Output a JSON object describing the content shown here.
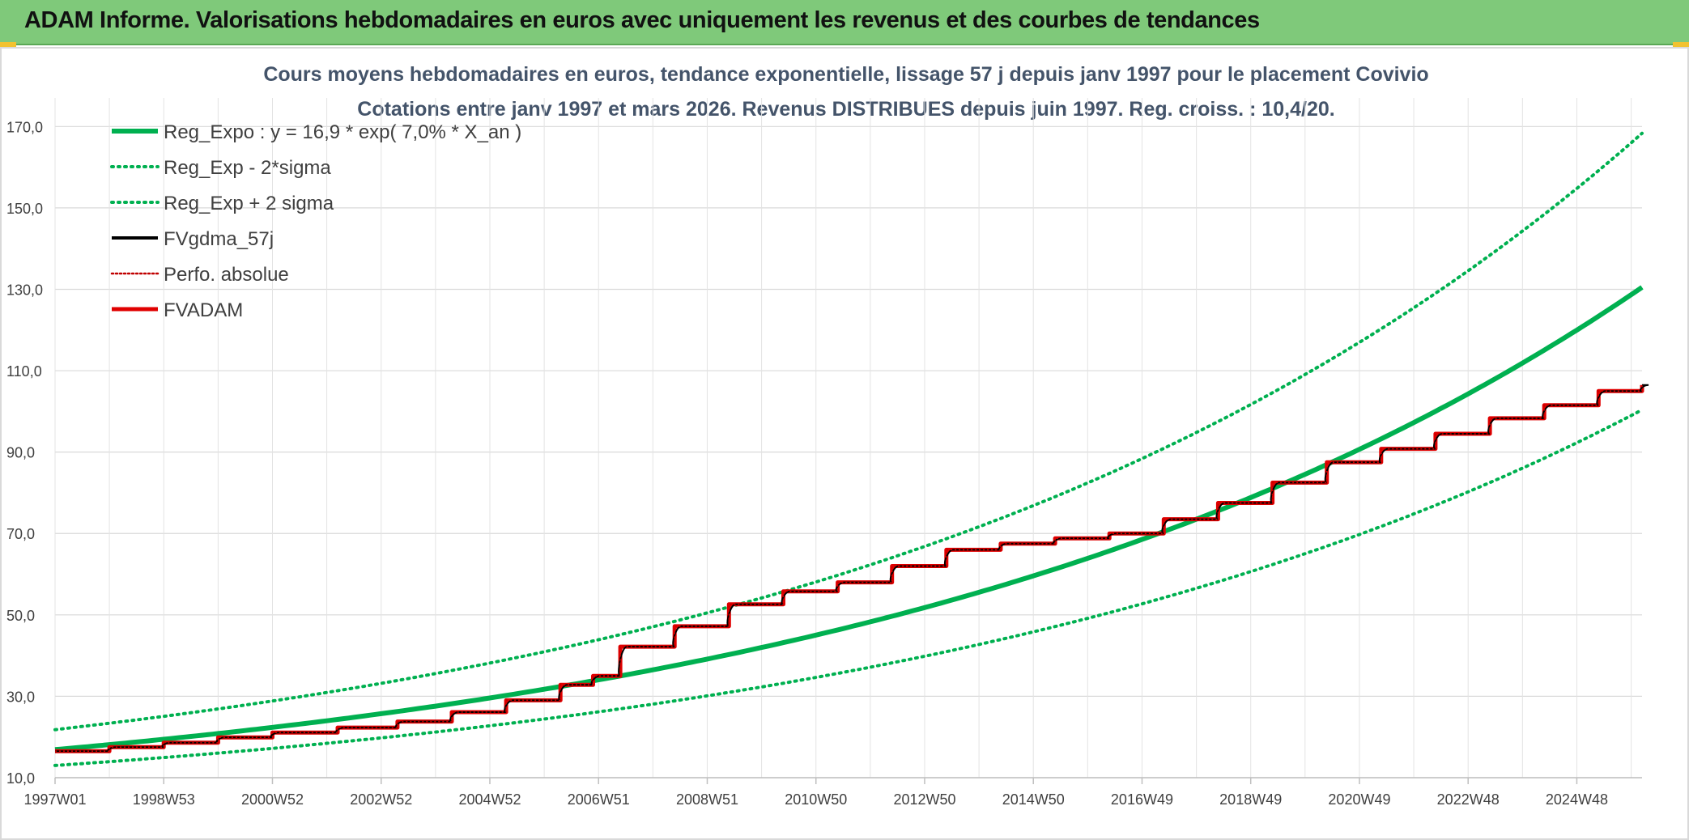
{
  "banner": {
    "title": "ADAM Informe. Valorisations hebdomadaires en euros avec uniquement les revenus et des courbes de tendances"
  },
  "chart_data": {
    "type": "line",
    "title_lines": [
      "Cours moyens hebdomadaires en euros, tendance exponentielle, lissage 57 j depuis janv 1997 pour le placement Covivio",
      "Cotations entre janv 1997 et mars 2026. Revenus DISTRIBUES depuis juin 1997. Reg. croiss. : 10,4/20."
    ],
    "x_ticks": [
      "1997W01",
      "1998W53",
      "2000W52",
      "2002W52",
      "2004W52",
      "2006W51",
      "2008W51",
      "2010W50",
      "2012W50",
      "2014W50",
      "2016W49",
      "2018W49",
      "2020W49",
      "2022W48",
      "2024W48"
    ],
    "x_range_years": [
      1997.0,
      2026.2
    ],
    "y_ticks": [
      "10,0",
      "30,0",
      "50,0",
      "70,0",
      "90,0",
      "110,0",
      "130,0",
      "150,0",
      "170,0"
    ],
    "ylim": [
      10,
      180
    ],
    "grid": true,
    "legend_position": "top-left",
    "series": [
      {
        "name": "Reg_Expo : y = 16,9 * exp( 7,0% *  X_an )",
        "color": "#00b050",
        "style": "solid",
        "width": 6,
        "formula": {
          "a": 16.9,
          "rate": 0.07
        }
      },
      {
        "name": "Reg_Exp - 2*sigma",
        "color": "#00b050",
        "style": "dotted",
        "width": 4,
        "formula": {
          "a": 13.0,
          "rate": 0.07
        }
      },
      {
        "name": "Reg_Exp + 2 sigma",
        "color": "#00b050",
        "style": "dotted",
        "width": 4,
        "formula": {
          "a": 21.8,
          "rate": 0.07
        }
      },
      {
        "name": "FVgdma_57j",
        "color": "#000000",
        "style": "solid",
        "width": 3
      },
      {
        "name": "Perfo. absolue",
        "color": "#c00000",
        "style": "dotted",
        "width": 2
      },
      {
        "name": "FVADAM",
        "color": "#e00000",
        "style": "solid",
        "width": 5,
        "steps": [
          {
            "x": 1997.0,
            "y": 16.5
          },
          {
            "x": 1998.0,
            "y": 17.5
          },
          {
            "x": 1999.0,
            "y": 18.6
          },
          {
            "x": 2000.0,
            "y": 19.9
          },
          {
            "x": 2001.0,
            "y": 21.1
          },
          {
            "x": 2002.2,
            "y": 22.3
          },
          {
            "x": 2003.3,
            "y": 23.8
          },
          {
            "x": 2004.3,
            "y": 26.1
          },
          {
            "x": 2005.3,
            "y": 29.0
          },
          {
            "x": 2006.3,
            "y": 32.8
          },
          {
            "x": 2006.9,
            "y": 35.0
          },
          {
            "x": 2007.4,
            "y": 42.2
          },
          {
            "x": 2008.4,
            "y": 47.2
          },
          {
            "x": 2009.4,
            "y": 52.6
          },
          {
            "x": 2010.4,
            "y": 55.8
          },
          {
            "x": 2011.4,
            "y": 58.0
          },
          {
            "x": 2012.4,
            "y": 62.0
          },
          {
            "x": 2013.4,
            "y": 66.0
          },
          {
            "x": 2014.4,
            "y": 67.5
          },
          {
            "x": 2015.4,
            "y": 68.8
          },
          {
            "x": 2016.4,
            "y": 70.0
          },
          {
            "x": 2017.4,
            "y": 73.5
          },
          {
            "x": 2018.4,
            "y": 77.5
          },
          {
            "x": 2019.4,
            "y": 82.5
          },
          {
            "x": 2020.4,
            "y": 87.5
          },
          {
            "x": 2021.4,
            "y": 90.8
          },
          {
            "x": 2022.4,
            "y": 94.5
          },
          {
            "x": 2023.4,
            "y": 98.3
          },
          {
            "x": 2024.4,
            "y": 101.5
          },
          {
            "x": 2025.4,
            "y": 105.0
          },
          {
            "x": 2026.2,
            "y": 106.5
          }
        ]
      }
    ]
  }
}
